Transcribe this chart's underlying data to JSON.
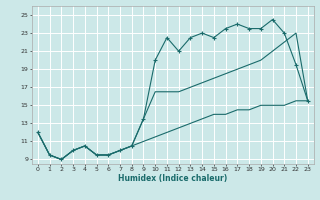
{
  "xlabel": "Humidex (Indice chaleur)",
  "bg_color": "#cce8e8",
  "grid_color": "#b0d8d8",
  "line_color": "#1a6b6b",
  "xlim": [
    -0.5,
    23.5
  ],
  "ylim": [
    8.5,
    26
  ],
  "xticks": [
    0,
    1,
    2,
    3,
    4,
    5,
    6,
    7,
    8,
    9,
    10,
    11,
    12,
    13,
    14,
    15,
    16,
    17,
    18,
    19,
    20,
    21,
    22,
    23
  ],
  "yticks": [
    9,
    11,
    13,
    15,
    17,
    19,
    21,
    23,
    25
  ],
  "series1_x": [
    0,
    1,
    2,
    3,
    4,
    5,
    6,
    7,
    8,
    9,
    10,
    11,
    12,
    13,
    14,
    15,
    16,
    17,
    18,
    19,
    20,
    21,
    22,
    23
  ],
  "series1_y": [
    12,
    9.5,
    9,
    10,
    10.5,
    9.5,
    9.5,
    10,
    10.5,
    13.5,
    20,
    22.5,
    21,
    22.5,
    23,
    22.5,
    23.5,
    24,
    23.5,
    23.5,
    24.5,
    23,
    19.5,
    15.5
  ],
  "series2_x": [
    0,
    1,
    2,
    3,
    4,
    5,
    6,
    7,
    8,
    9,
    10,
    11,
    12,
    13,
    14,
    15,
    16,
    17,
    18,
    19,
    20,
    21,
    22,
    23
  ],
  "series2_y": [
    12,
    9.5,
    9,
    10,
    10.5,
    9.5,
    9.5,
    10,
    10.5,
    13.5,
    16.5,
    16.5,
    16.5,
    17,
    17.5,
    18,
    18.5,
    19,
    19.5,
    20,
    21,
    22,
    23,
    15.5
  ],
  "series3_x": [
    0,
    1,
    2,
    3,
    4,
    5,
    6,
    7,
    8,
    9,
    10,
    11,
    12,
    13,
    14,
    15,
    16,
    17,
    18,
    19,
    20,
    21,
    22,
    23
  ],
  "series3_y": [
    12,
    9.5,
    9,
    10,
    10.5,
    9.5,
    9.5,
    10,
    10.5,
    11,
    11.5,
    12,
    12.5,
    13,
    13.5,
    14,
    14,
    14.5,
    14.5,
    15,
    15,
    15,
    15.5,
    15.5
  ]
}
